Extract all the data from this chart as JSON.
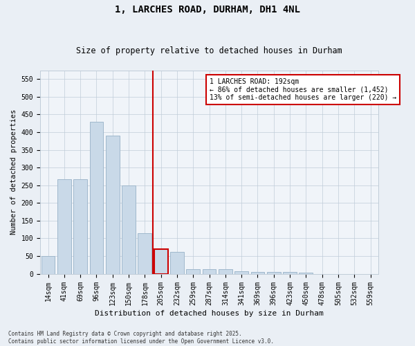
{
  "title": "1, LARCHES ROAD, DURHAM, DH1 4NL",
  "subtitle": "Size of property relative to detached houses in Durham",
  "xlabel": "Distribution of detached houses by size in Durham",
  "ylabel": "Number of detached properties",
  "categories": [
    "14sqm",
    "41sqm",
    "69sqm",
    "96sqm",
    "123sqm",
    "150sqm",
    "178sqm",
    "205sqm",
    "232sqm",
    "259sqm",
    "287sqm",
    "314sqm",
    "341sqm",
    "369sqm",
    "396sqm",
    "423sqm",
    "450sqm",
    "478sqm",
    "505sqm",
    "532sqm",
    "559sqm"
  ],
  "values": [
    50,
    267,
    268,
    430,
    390,
    250,
    115,
    70,
    62,
    13,
    12,
    13,
    7,
    5,
    5,
    5,
    4,
    0,
    0,
    0,
    0
  ],
  "bar_color": "#c9d9e8",
  "bar_edge_color": "#a0b8cc",
  "highlight_index": 7,
  "vline_color": "#cc0000",
  "annotation_text": "1 LARCHES ROAD: 192sqm\n← 86% of detached houses are smaller (1,452)\n13% of semi-detached houses are larger (220) →",
  "annotation_box_color": "#ffffff",
  "annotation_box_edge": "#cc0000",
  "ylim": [
    0,
    575
  ],
  "yticks": [
    0,
    50,
    100,
    150,
    200,
    250,
    300,
    350,
    400,
    450,
    500,
    550
  ],
  "footnote": "Contains HM Land Registry data © Crown copyright and database right 2025.\nContains public sector information licensed under the Open Government Licence v3.0.",
  "bg_color": "#eaeff5",
  "plot_bg_color": "#f0f4f9",
  "grid_color": "#c0ccd8",
  "title_fontsize": 10,
  "subtitle_fontsize": 8.5,
  "xlabel_fontsize": 8,
  "ylabel_fontsize": 7.5,
  "tick_fontsize": 7,
  "annot_fontsize": 7
}
